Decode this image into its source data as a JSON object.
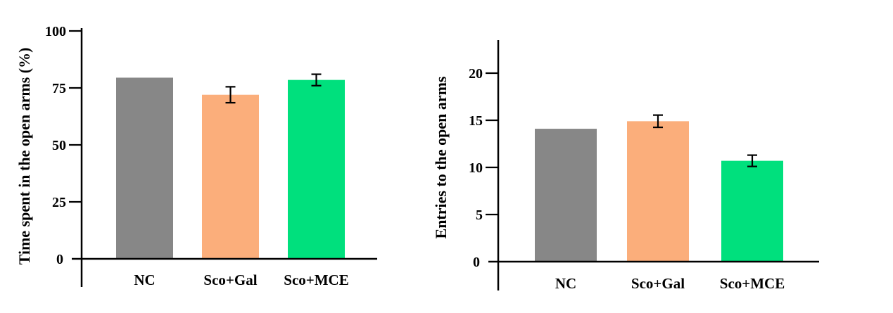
{
  "chart_data": [
    {
      "type": "bar",
      "categories": [
        "NC",
        "Sco+Gal",
        "Sco+MCE"
      ],
      "values": [
        79.5,
        72.0,
        78.5
      ],
      "errors": [
        0,
        3.5,
        2.5
      ],
      "title": "",
      "xlabel": "",
      "ylabel": "Time spent in the open arms (%)",
      "ylim": [
        0,
        100
      ],
      "yticks": [
        0,
        25,
        50,
        75,
        100
      ],
      "colors": [
        "#878787",
        "#FBAE7B",
        "#00E07D"
      ],
      "grid": false
    },
    {
      "type": "bar",
      "categories": [
        "NC",
        "Sco+Gal",
        "Sco+MCE"
      ],
      "values": [
        14.1,
        14.9,
        10.7
      ],
      "errors": [
        0,
        0.65,
        0.6
      ],
      "title": "",
      "xlabel": "",
      "ylabel": "Entries to the open arms",
      "ylim": [
        0,
        20
      ],
      "yticks": [
        0,
        5,
        10,
        15,
        20
      ],
      "colors": [
        "#878787",
        "#FBAE7B",
        "#00E07D"
      ],
      "grid": false
    }
  ]
}
